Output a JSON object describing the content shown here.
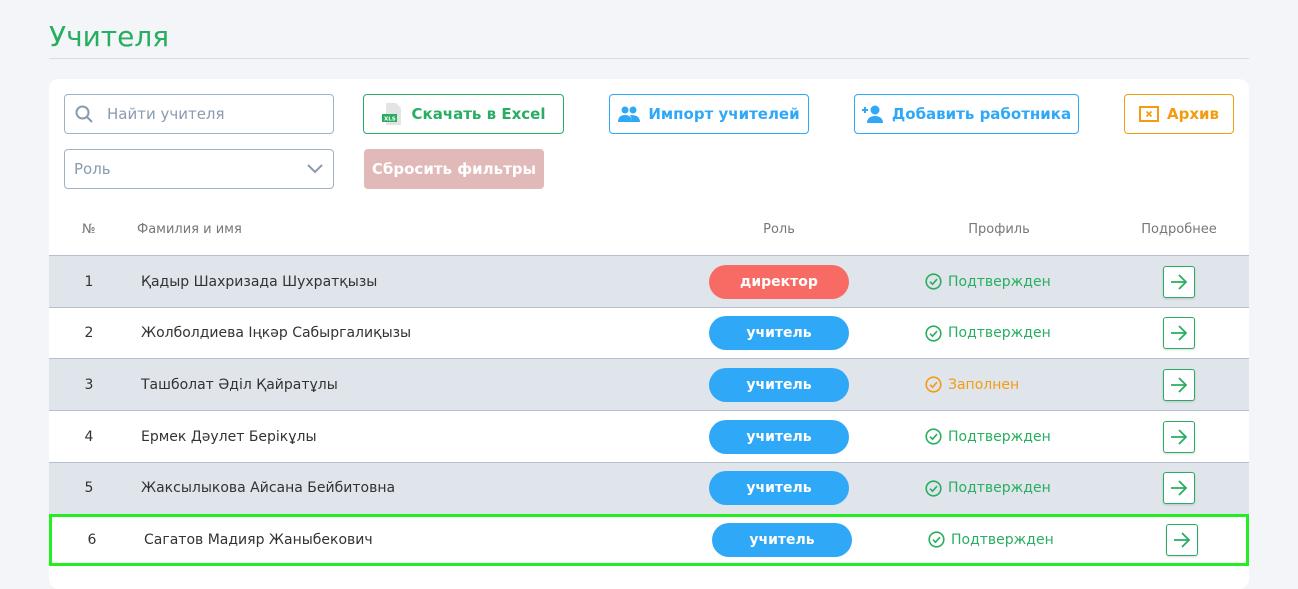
{
  "page_title": "Учителя",
  "toolbar": {
    "search_placeholder": "Найти учителя",
    "excel": "Скачать в Excel",
    "import": "Импорт учителей",
    "add": "Добавить работника",
    "archive": "Архив",
    "role_select": "Роль",
    "reset": "Сбросить фильтры",
    "xls_badge": "XLS"
  },
  "table": {
    "headers": [
      "№",
      "Фамилия и имя",
      "Роль",
      "Профиль",
      "Подробнее"
    ],
    "rows": [
      {
        "num": "1",
        "name": "Қадыр Шахризада Шухратқызы",
        "role": "директор",
        "profile": "Подтвержден"
      },
      {
        "num": "2",
        "name": "Жолболдиева Іңкәр Сабыргалиқызы",
        "role": "учитель",
        "profile": "Подтвержден"
      },
      {
        "num": "3",
        "name": "Ташболат Әділ Қайратұлы",
        "role": "учитель",
        "profile": "Заполнен"
      },
      {
        "num": "4",
        "name": "Ермек Дәулет Берікұлы",
        "role": "учитель",
        "profile": "Подтвержден"
      },
      {
        "num": "5",
        "name": "Жаксылыкова Айсана Бейбитовна",
        "role": "учитель",
        "profile": "Подтвержден"
      },
      {
        "num": "6",
        "name": "Сагатов Мадияр Жаныбекович",
        "role": "учитель",
        "profile": "Подтвержден"
      }
    ]
  },
  "colors": {
    "green": "#27ae60",
    "blue": "#2fa8f8",
    "red": "#f76b64",
    "orange": "#f39c12",
    "reset": "#e0b9b8"
  }
}
